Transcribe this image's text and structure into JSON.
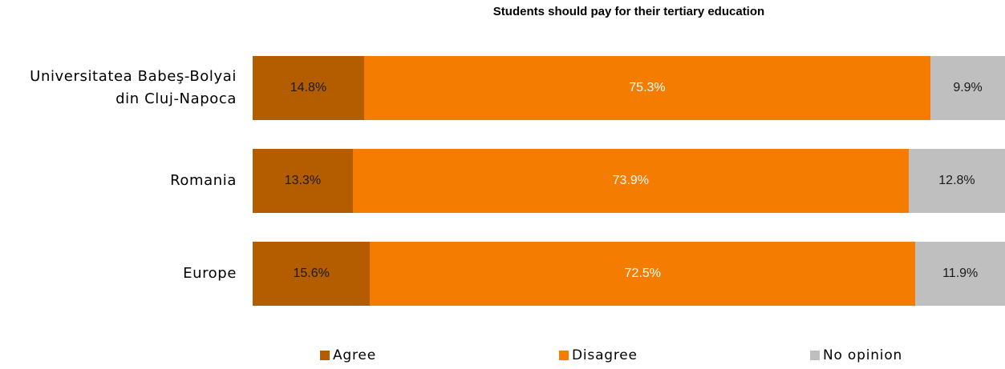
{
  "chart_data": {
    "type": "bar",
    "orientation": "horizontal",
    "stacked": true,
    "title": "Students should pay for their tertiary education",
    "categories": [
      [
        "Universitatea Babeş-Bolyai",
        "din Cluj-Napoca"
      ],
      [
        "Romania"
      ],
      [
        "Europe"
      ]
    ],
    "series": [
      {
        "name": "Agree",
        "color": "#b35c00",
        "label_color": "#1a1a1a",
        "values": [
          14.8,
          13.3,
          15.6
        ],
        "labels": [
          "14.8%",
          "13.3%",
          "15.6%"
        ]
      },
      {
        "name": "Disagree",
        "color": "#f47c00",
        "label_color": "#ffffff",
        "values": [
          75.3,
          73.9,
          72.5
        ],
        "labels": [
          "75.3%",
          "73.9%",
          "72.5%"
        ]
      },
      {
        "name": "No opinion",
        "color": "#bfbfbf",
        "label_color": "#1a1a1a",
        "values": [
          9.9,
          12.8,
          11.9
        ],
        "labels": [
          "9.9%",
          "12.8%",
          "11.9%"
        ]
      }
    ],
    "xlim": [
      0,
      100
    ],
    "grid": false,
    "legend_position": "bottom"
  }
}
